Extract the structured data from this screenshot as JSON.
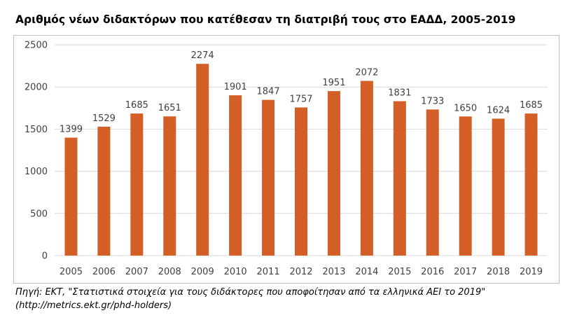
{
  "chart_data": {
    "type": "bar",
    "title": "Αριθμός νέων διδακτόρων που κατέθεσαν τη διατριβή τους στο ΕΑΔΔ, 2005-2019",
    "categories": [
      "2005",
      "2006",
      "2007",
      "2008",
      "2009",
      "2010",
      "2011",
      "2012",
      "2013",
      "2014",
      "2015",
      "2016",
      "2017",
      "2018",
      "2019"
    ],
    "values": [
      1399,
      1529,
      1685,
      1651,
      2274,
      1901,
      1847,
      1757,
      1951,
      2072,
      1831,
      1733,
      1650,
      1624,
      1685
    ],
    "ylim": [
      0,
      2500
    ],
    "yticks": [
      0,
      500,
      1000,
      1500,
      2000,
      2500
    ],
    "xlabel": "",
    "ylabel": "",
    "grid": true,
    "bar_color": "#d35f27",
    "grid_color": "#d9d9d9",
    "text_color": "#404040"
  },
  "source": {
    "line1": "Πηγή: ΕΚΤ, \"Στατιστικά στοιχεία για τους διδάκτορες που αποφοίτησαν από τα ελληνικά ΑΕΙ το 2019\"",
    "line2": "(http://metrics.ekt.gr/phd-holders)"
  }
}
